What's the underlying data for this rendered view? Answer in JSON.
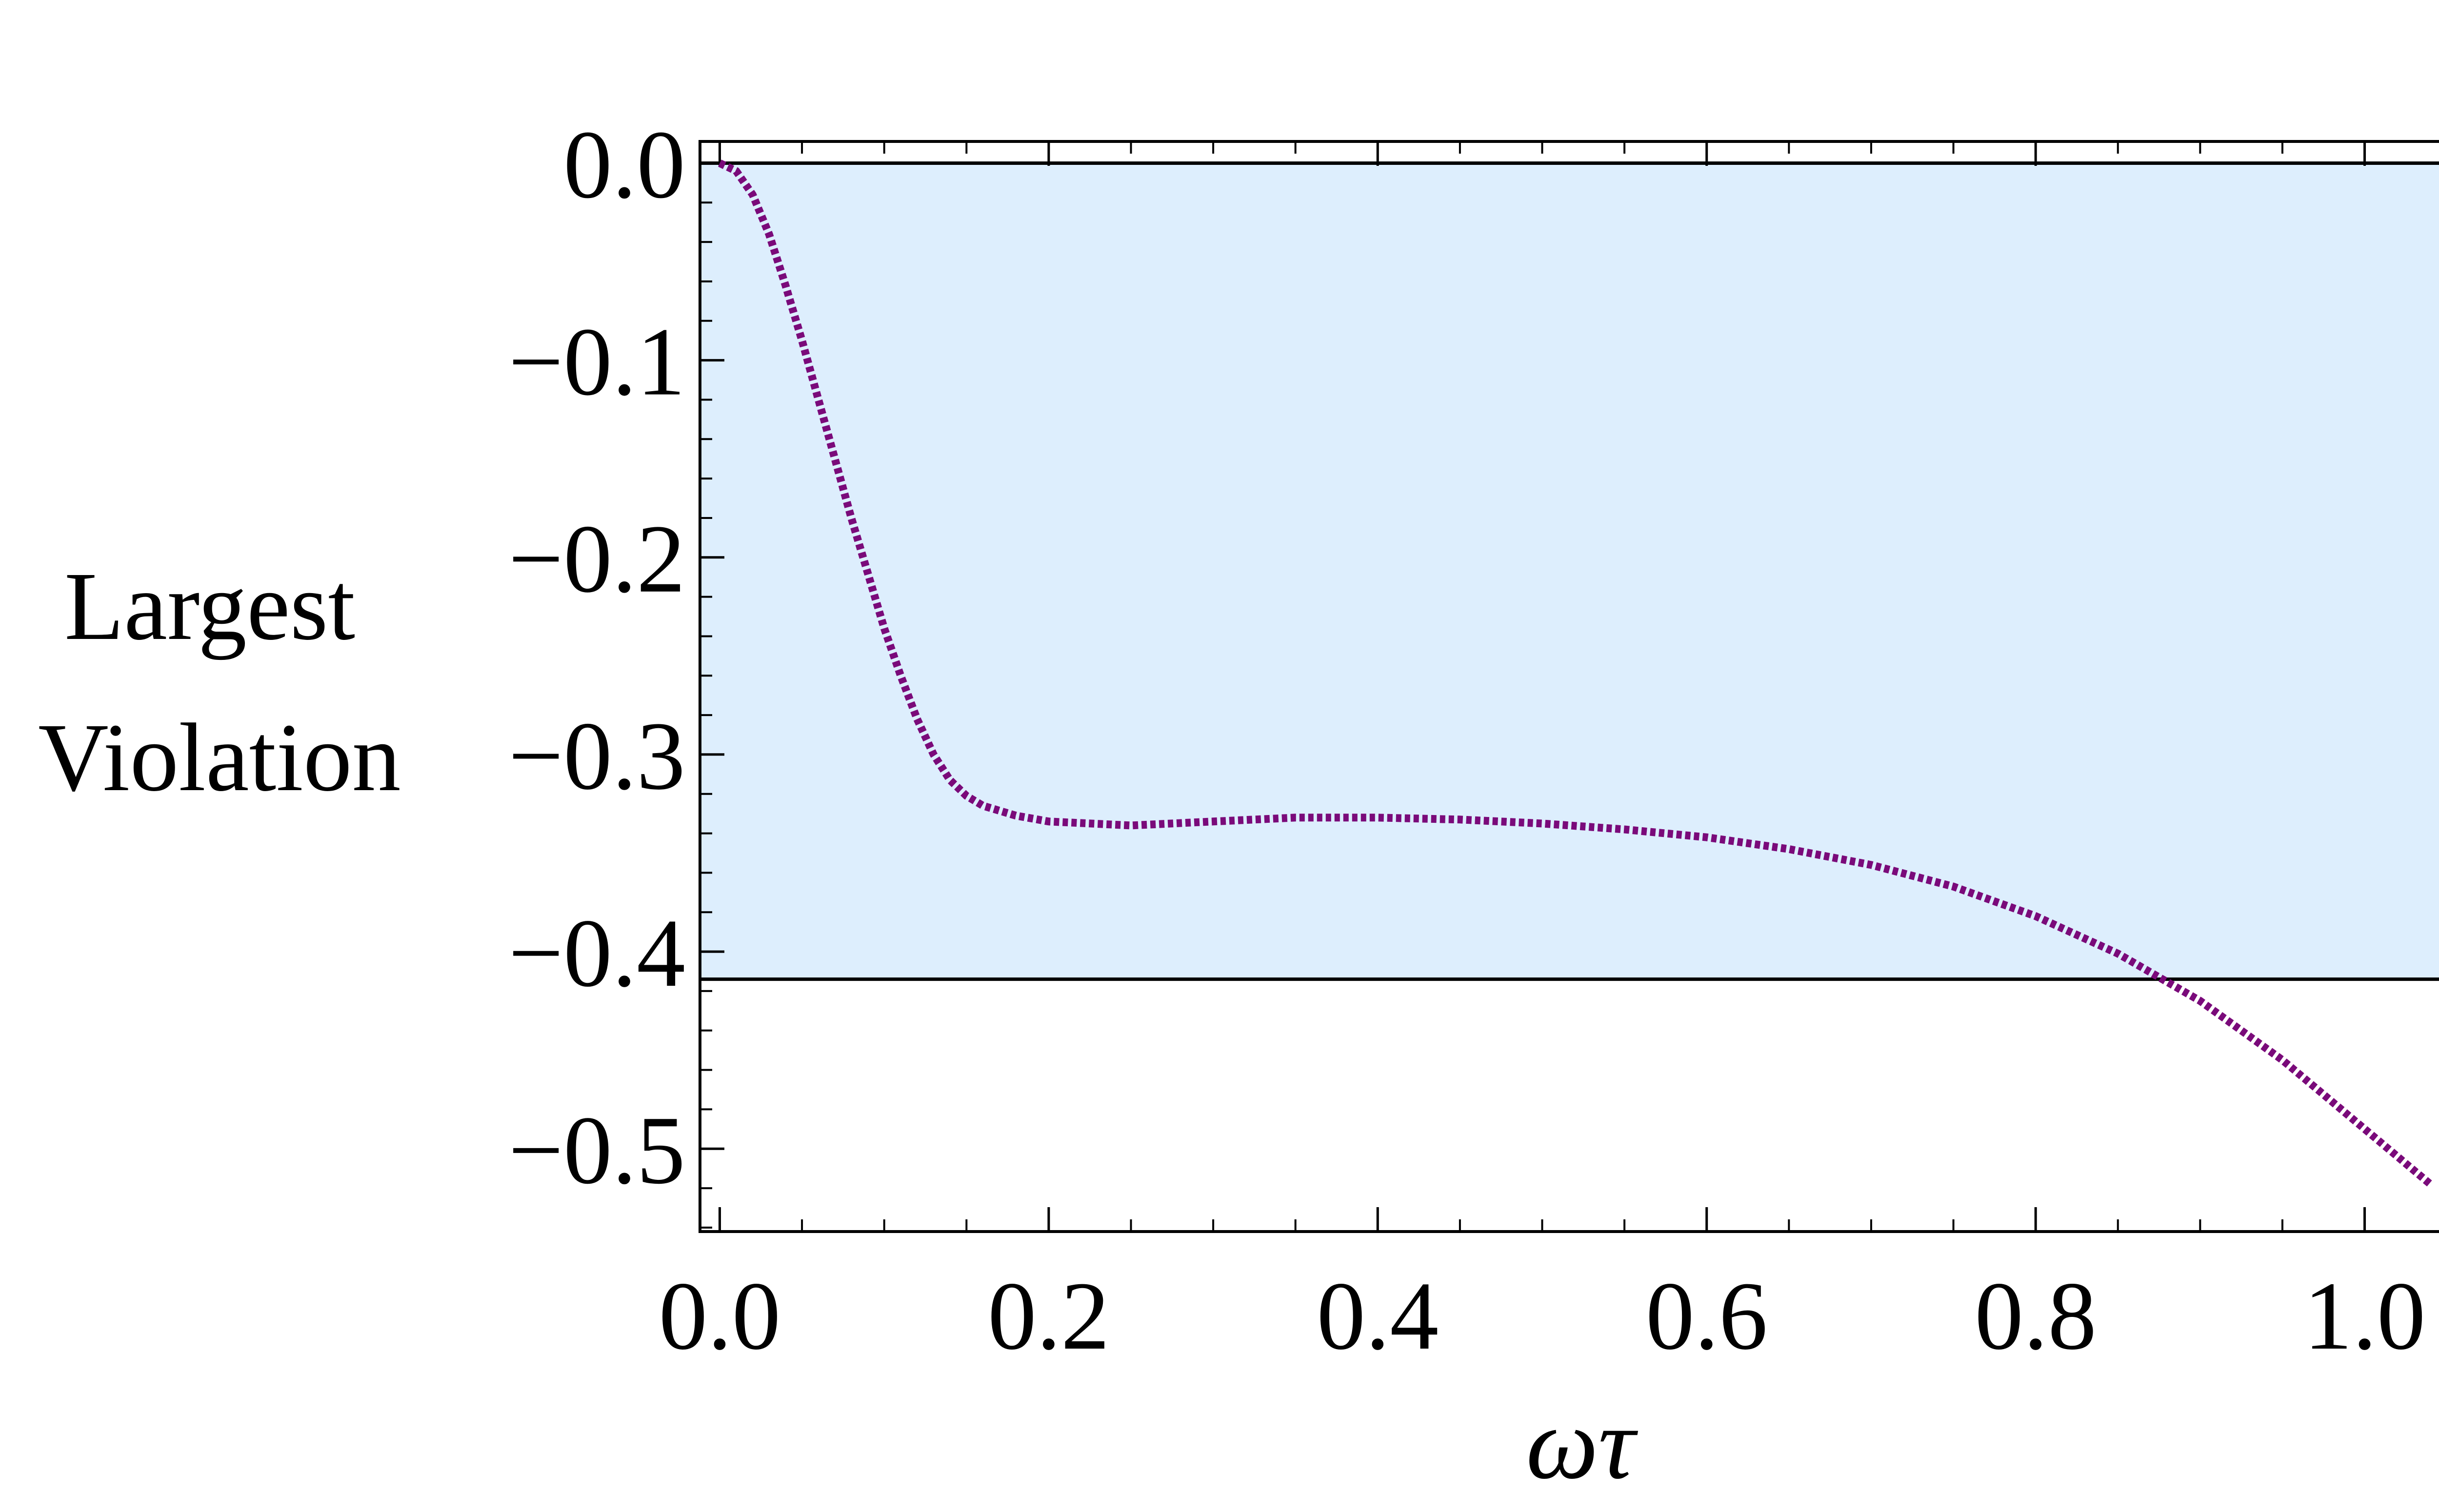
{
  "chart_data": {
    "type": "line",
    "xlabel": "ωτ",
    "ylabel_lines": [
      "Largest",
      "Violation"
    ],
    "xlim": [
      -0.012,
      1.063
    ],
    "ylim": [
      -0.542,
      0.011
    ],
    "x_ticks": [
      0.0,
      0.2,
      0.4,
      0.6,
      0.8,
      1.0
    ],
    "x_tick_labels": [
      "0.0",
      "0.2",
      "0.4",
      "0.6",
      "0.8",
      "1.0"
    ],
    "x_minor_step": 0.05,
    "y_ticks": [
      0.0,
      -0.1,
      -0.2,
      -0.3,
      -0.4,
      -0.5
    ],
    "y_tick_labels": [
      "0.0",
      "−0.1",
      "−0.2",
      "−0.3",
      "−0.4",
      "−0.5"
    ],
    "y_minor_step": 0.02,
    "band": {
      "y_top": 0.0,
      "y_bottom": -0.414,
      "color": "#ddeefd"
    },
    "reference_lines": [
      0.0,
      -0.414
    ],
    "series": [
      {
        "style": "dotted",
        "color": "#7a0a7a",
        "x": [
          0.0,
          0.01,
          0.02,
          0.03,
          0.04,
          0.05,
          0.06,
          0.07,
          0.08,
          0.09,
          0.1,
          0.11,
          0.12,
          0.13,
          0.14,
          0.15,
          0.16,
          0.18,
          0.2,
          0.25,
          0.3,
          0.35,
          0.4,
          0.45,
          0.5,
          0.55,
          0.6,
          0.65,
          0.7,
          0.75,
          0.8,
          0.85,
          0.9,
          0.95,
          1.0,
          1.04
        ],
        "y": [
          0.0,
          -0.004,
          -0.016,
          -0.036,
          -0.062,
          -0.09,
          -0.12,
          -0.15,
          -0.18,
          -0.208,
          -0.236,
          -0.26,
          -0.282,
          -0.3,
          -0.313,
          -0.321,
          -0.326,
          -0.331,
          -0.334,
          -0.336,
          -0.334,
          -0.332,
          -0.332,
          -0.333,
          -0.335,
          -0.338,
          -0.342,
          -0.348,
          -0.356,
          -0.367,
          -0.382,
          -0.401,
          -0.425,
          -0.455,
          -0.49,
          -0.518
        ]
      }
    ]
  }
}
